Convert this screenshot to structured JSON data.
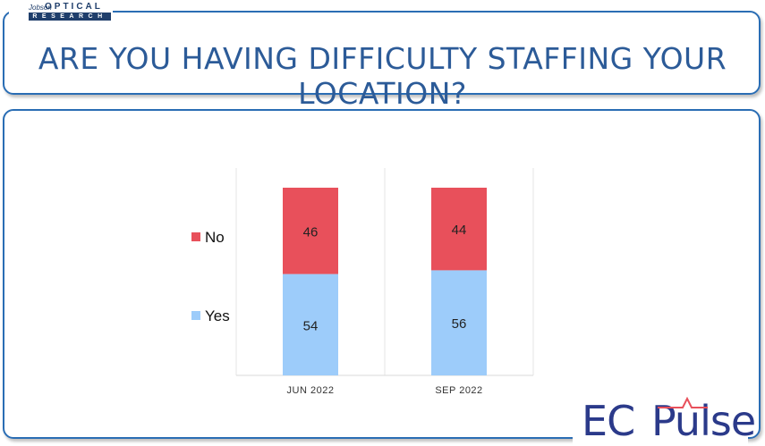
{
  "header": {
    "brand_top": "Jobson",
    "brand_optical": "OPTICAL",
    "brand_research": "RESEARCH",
    "title": "ARE YOU HAVING DIFFICULTY STAFFING YOUR LOCATION?"
  },
  "footer": {
    "logo_ec": "EC",
    "logo_pulse": "Pulse"
  },
  "colors": {
    "no": "#e8505b",
    "yes": "#9dccfa",
    "accent": "#2a6db4"
  },
  "chart_data": {
    "type": "bar",
    "stacked": true,
    "categories": [
      "JUN 2022",
      "SEP 2022"
    ],
    "series": [
      {
        "name": "Yes",
        "values": [
          54,
          56
        ],
        "color": "#9dccfa"
      },
      {
        "name": "No",
        "values": [
          46,
          44
        ],
        "color": "#e8505b"
      }
    ],
    "ylim": [
      0,
      100
    ],
    "grid": false,
    "legend": "left"
  }
}
